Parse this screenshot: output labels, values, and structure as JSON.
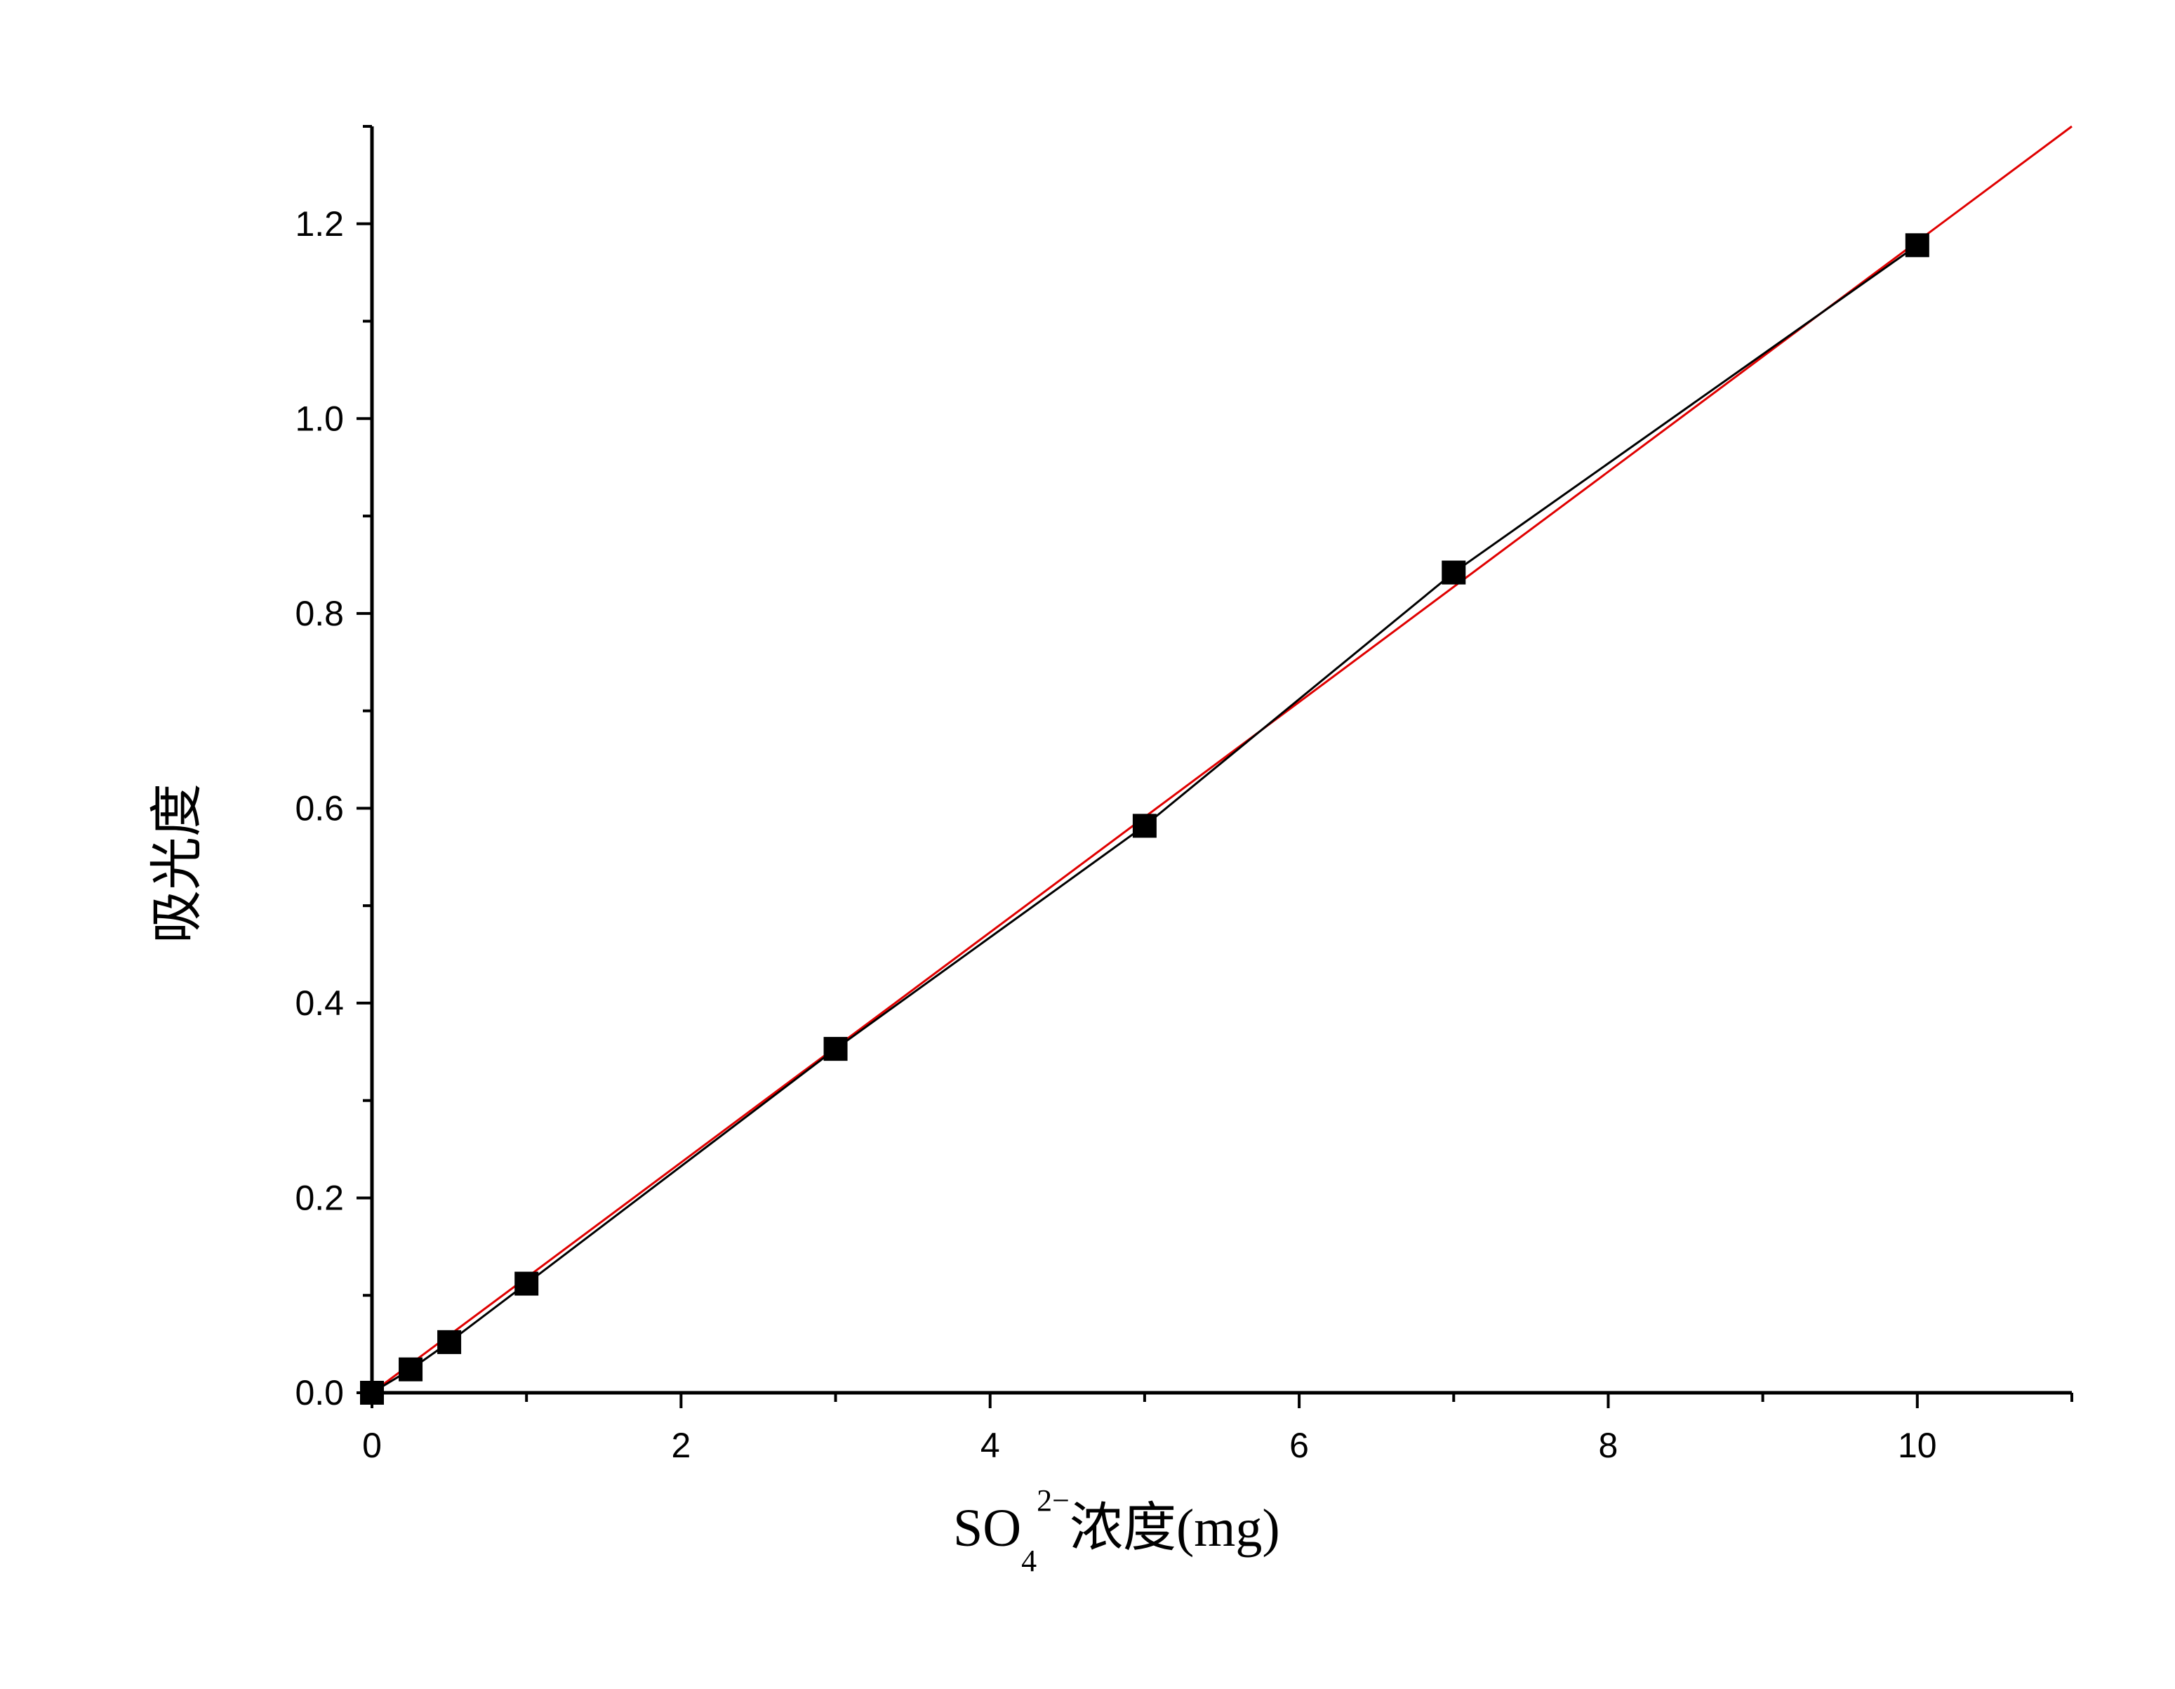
{
  "chart_data": {
    "type": "scatter",
    "title": "",
    "xlabel": {
      "base": "SO",
      "subscript": "4",
      "superscript": "2−",
      "rest": "浓度(mg)"
    },
    "ylabel": "吸光度",
    "xlim": [
      0,
      11
    ],
    "ylim": [
      0,
      1.3
    ],
    "x_ticks": [
      0,
      2,
      4,
      6,
      8,
      10
    ],
    "x_tick_labels": [
      "0",
      "2",
      "4",
      "6",
      "8",
      "10"
    ],
    "y_ticks": [
      0.0,
      0.2,
      0.4,
      0.6,
      0.8,
      1.0,
      1.2
    ],
    "y_tick_labels": [
      "0.0",
      "0.2",
      "0.4",
      "0.6",
      "0.8",
      "1.0",
      "1.2"
    ],
    "grid": false,
    "legend": "none",
    "series": [
      {
        "style": "line+square-markers",
        "color": "#000000",
        "x": [
          0,
          0.25,
          0.5,
          1,
          3,
          5,
          7,
          10
        ],
        "y": [
          0.0,
          0.024,
          0.052,
          0.112,
          0.353,
          0.582,
          0.842,
          1.178
        ]
      }
    ],
    "fit_line": {
      "color": "#e00000",
      "x": [
        0,
        11
      ],
      "y": [
        0.0,
        1.3
      ]
    }
  }
}
